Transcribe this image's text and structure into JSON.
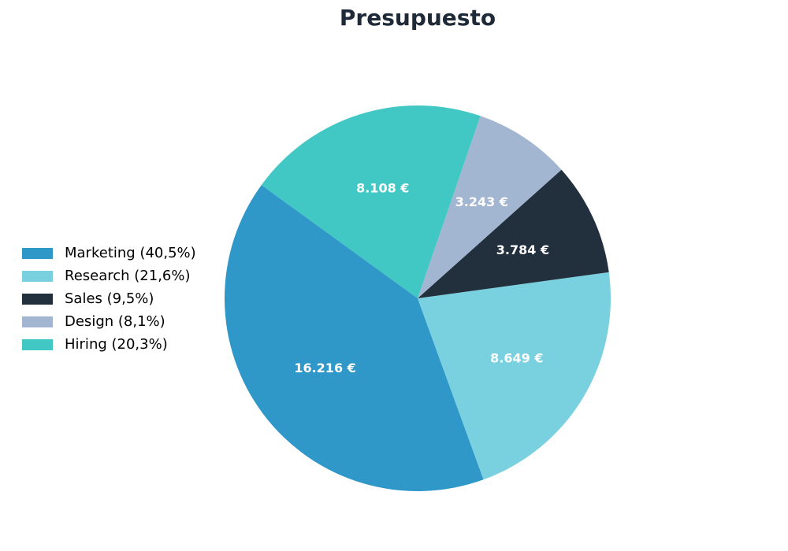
{
  "chart_data": {
    "type": "pie",
    "title": "Presupuesto",
    "slices": [
      {
        "name": "Marketing",
        "value": 16216,
        "value_label": "16.216 €",
        "legend_label": "Marketing (40,5%)",
        "color": "#3097c9"
      },
      {
        "name": "Research",
        "value": 8649,
        "value_label": "8.649 €",
        "legend_label": "Research (21,6%)",
        "color": "#79d0df"
      },
      {
        "name": "Sales",
        "value": 3784,
        "value_label": "3.784 €",
        "legend_label": "Sales (9,5%)",
        "color": "#222f3d"
      },
      {
        "name": "Design",
        "value": 3243,
        "value_label": "3.243 €",
        "legend_label": "Design (8,1%)",
        "color": "#a2b5d1"
      },
      {
        "name": "Hiring",
        "value": 8108,
        "value_label": "8.108 €",
        "legend_label": "Hiring (20,3%)",
        "color": "#41c7c4"
      }
    ],
    "legend_position": "left",
    "direction": "counterclockwise"
  }
}
